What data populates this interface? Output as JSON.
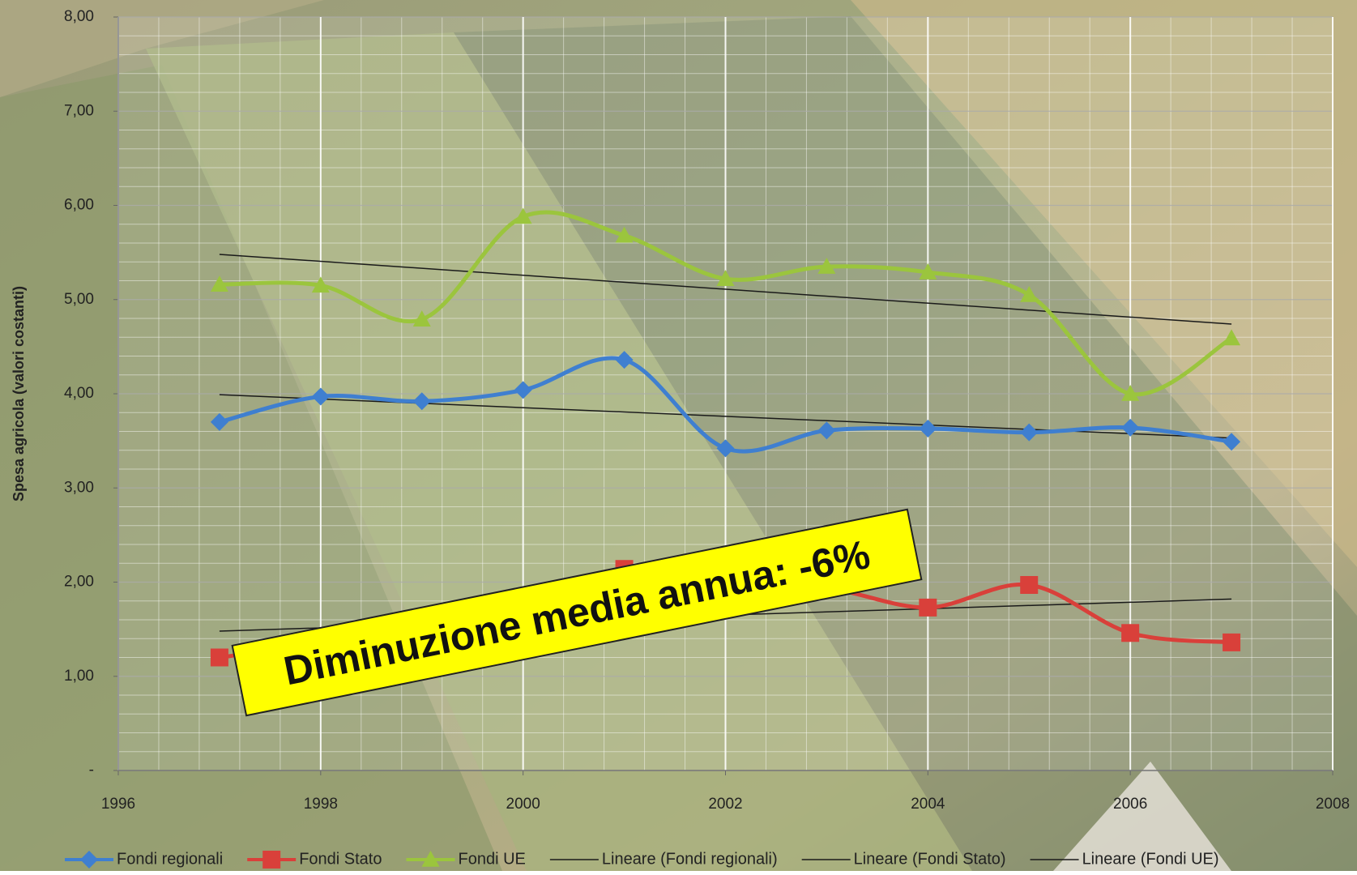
{
  "chart_data": {
    "type": "line",
    "y_label": "Spesa agricola (valori  costanti)",
    "annotation": "Diminuzione media annua: -6%",
    "x": [
      1997,
      1998,
      1999,
      2000,
      2001,
      2002,
      2003,
      2004,
      2005,
      2006,
      2007
    ],
    "series": [
      {
        "name": "Fondi regionali",
        "color": "#3f7fd0",
        "marker": "diamond",
        "values": [
          3.7,
          3.97,
          3.92,
          4.04,
          4.36,
          3.42,
          3.61,
          3.63,
          3.59,
          3.64,
          3.49
        ]
      },
      {
        "name": "Fondi Stato",
        "color": "#d9403a",
        "marker": "square",
        "values": [
          1.2,
          1.35,
          1.55,
          1.8,
          2.14,
          1.9,
          1.93,
          1.73,
          1.97,
          1.46,
          1.36
        ]
      },
      {
        "name": "Fondi UE",
        "color": "#9bc53d",
        "marker": "triangle",
        "values": [
          5.16,
          5.15,
          4.79,
          5.88,
          5.68,
          5.22,
          5.35,
          5.29,
          5.05,
          4.0,
          4.59
        ]
      },
      {
        "name": "Lineare (Fondi regionali)",
        "color": "#1a1a1a",
        "trend": true,
        "x": [
          1997,
          2007
        ],
        "values": [
          3.99,
          3.53
        ]
      },
      {
        "name": "Lineare (Fondi Stato)",
        "color": "#1a1a1a",
        "trend": true,
        "x": [
          1997,
          2007
        ],
        "values": [
          1.48,
          1.82
        ]
      },
      {
        "name": "Lineare (Fondi UE)",
        "color": "#1a1a1a",
        "trend": true,
        "x": [
          1997,
          2007
        ],
        "values": [
          5.48,
          4.74
        ]
      }
    ],
    "xlim": [
      1996,
      2008
    ],
    "xticks": [
      1996,
      1998,
      2000,
      2002,
      2004,
      2006,
      2008
    ],
    "ylim": [
      0,
      8
    ],
    "yticks": [
      {
        "value": 0,
        "label": "-"
      },
      {
        "value": 1,
        "label": "1,00"
      },
      {
        "value": 2,
        "label": "2,00"
      },
      {
        "value": 3,
        "label": "3,00"
      },
      {
        "value": 4,
        "label": "4,00"
      },
      {
        "value": 5,
        "label": "5,00"
      },
      {
        "value": 6,
        "label": "6,00"
      },
      {
        "value": 7,
        "label": "7,00"
      },
      {
        "value": 8,
        "label": "8,00"
      }
    ],
    "grid": true,
    "minor_grid": true,
    "smooth": true,
    "legend": "bottom"
  }
}
